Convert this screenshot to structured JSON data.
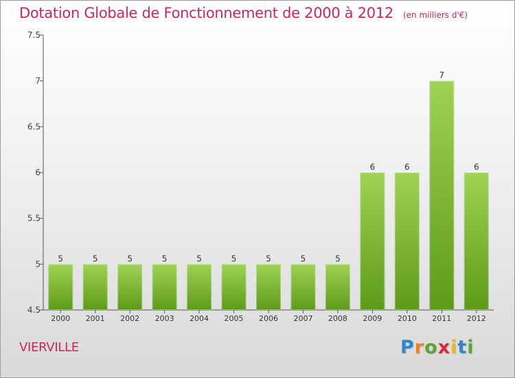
{
  "title": "Dotation Globale de Fonctionnement de 2000 à 2012",
  "subtitle": "(en milliers d'€)",
  "commune": "VIERVILLE",
  "logo": {
    "letters": [
      "P",
      "r",
      "o",
      "x",
      "i",
      "t",
      "i"
    ],
    "colors": [
      "#2f86c8",
      "#f07d1c",
      "#5aa830",
      "#d6283c",
      "#f0b41c",
      "#2f86c8",
      "#5aa830"
    ]
  },
  "colors": {
    "title": "#c8285a",
    "bar_top": "#9fd255",
    "bar_bottom": "#5e9a1a",
    "axis": "#555555"
  },
  "chart_data": {
    "type": "bar",
    "categories": [
      "2000",
      "2001",
      "2002",
      "2003",
      "2004",
      "2005",
      "2006",
      "2007",
      "2008",
      "2009",
      "2010",
      "2011",
      "2012"
    ],
    "values": [
      5,
      5,
      5,
      5,
      5,
      5,
      5,
      5,
      5,
      6,
      6,
      7,
      6
    ],
    "data_labels": [
      "5",
      "5",
      "5",
      "5",
      "5",
      "5",
      "5",
      "5",
      "5",
      "6",
      "6",
      "7",
      "6"
    ],
    "ylim": [
      4.5,
      7.5
    ],
    "yticks": [
      4.5,
      5,
      5.5,
      6,
      6.5,
      7,
      7.5
    ],
    "ytick_labels": [
      "4.5",
      "5",
      "5.5",
      "6",
      "6.5",
      "7",
      "7.5"
    ],
    "grid": false,
    "xlabel": "",
    "ylabel": ""
  }
}
